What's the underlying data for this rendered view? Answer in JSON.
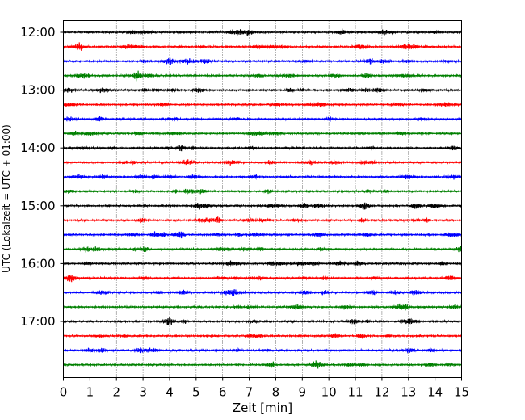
{
  "chart_data": {
    "type": "line",
    "title": "",
    "xlabel": "Zeit  [min]",
    "ylabel": "UTC (Lokalzeit = UTC + 01:00)",
    "xlim": [
      0,
      15
    ],
    "x_ticks": [
      "0",
      "1",
      "2",
      "3",
      "4",
      "5",
      "6",
      "7",
      "8",
      "9",
      "10",
      "11",
      "12",
      "13",
      "14",
      "15"
    ],
    "y_ticks": [
      "12:00",
      "13:00",
      "14:00",
      "15:00",
      "16:00",
      "17:00"
    ],
    "traces_per_hour": 4,
    "trace_interval_min": 15,
    "trace_count": 24,
    "trace_colors": [
      "#000000",
      "#ff0000",
      "#0000ff",
      "#008000"
    ],
    "grid": "vertical-dotted",
    "legend": "none",
    "series": [
      {
        "start": "12:00",
        "color": "#000000"
      },
      {
        "start": "12:15",
        "color": "#ff0000"
      },
      {
        "start": "12:30",
        "color": "#0000ff"
      },
      {
        "start": "12:45",
        "color": "#008000"
      },
      {
        "start": "13:00",
        "color": "#000000"
      },
      {
        "start": "13:15",
        "color": "#ff0000"
      },
      {
        "start": "13:30",
        "color": "#0000ff"
      },
      {
        "start": "13:45",
        "color": "#008000"
      },
      {
        "start": "14:00",
        "color": "#000000"
      },
      {
        "start": "14:15",
        "color": "#ff0000"
      },
      {
        "start": "14:30",
        "color": "#0000ff"
      },
      {
        "start": "14:45",
        "color": "#008000"
      },
      {
        "start": "15:00",
        "color": "#000000"
      },
      {
        "start": "15:15",
        "color": "#ff0000"
      },
      {
        "start": "15:30",
        "color": "#0000ff"
      },
      {
        "start": "15:45",
        "color": "#008000"
      },
      {
        "start": "16:00",
        "color": "#000000"
      },
      {
        "start": "16:15",
        "color": "#ff0000"
      },
      {
        "start": "16:30",
        "color": "#0000ff"
      },
      {
        "start": "16:45",
        "color": "#008000"
      },
      {
        "start": "17:00",
        "color": "#000000"
      },
      {
        "start": "17:15",
        "color": "#ff0000"
      },
      {
        "start": "17:30",
        "color": "#0000ff"
      },
      {
        "start": "17:45",
        "color": "#008000"
      }
    ]
  }
}
